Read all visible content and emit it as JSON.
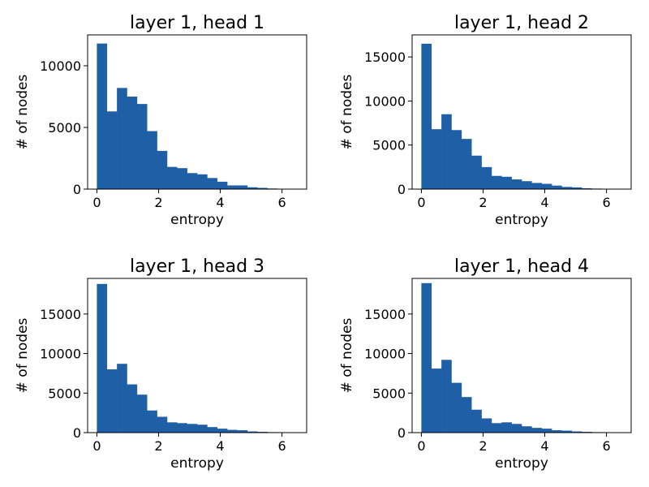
{
  "chart_data": [
    {
      "type": "bar",
      "title": "layer 1, head 1",
      "xlabel": "entropy",
      "ylabel": "# of nodes",
      "xlim": [
        -0.3,
        6.8
      ],
      "ylim": [
        0,
        12500
      ],
      "xticks": [
        0,
        2,
        4,
        6
      ],
      "yticks": [
        0,
        5000,
        10000
      ],
      "bin_start": 0,
      "bin_width": 0.325,
      "color": "#1f5fa6",
      "values": [
        11800,
        6300,
        8200,
        7500,
        6900,
        4700,
        3100,
        1800,
        1700,
        1300,
        1200,
        900,
        600,
        300,
        300,
        150,
        100,
        50,
        30,
        20
      ]
    },
    {
      "type": "bar",
      "title": "layer 1, head 2",
      "xlabel": "entropy",
      "ylabel": "# of nodes",
      "xlim": [
        -0.3,
        6.8
      ],
      "ylim": [
        0,
        17500
      ],
      "xticks": [
        0,
        2,
        4,
        6
      ],
      "yticks": [
        0,
        5000,
        10000,
        15000
      ],
      "bin_start": 0,
      "bin_width": 0.325,
      "color": "#1f5fa6",
      "values": [
        16500,
        6800,
        8500,
        6700,
        5700,
        3800,
        2500,
        1500,
        1400,
        1100,
        900,
        700,
        600,
        400,
        250,
        200,
        100,
        60,
        40,
        20
      ]
    },
    {
      "type": "bar",
      "title": "layer 1, head 3",
      "xlabel": "entropy",
      "ylabel": "# of nodes",
      "xlim": [
        -0.3,
        6.8
      ],
      "ylim": [
        0,
        19500
      ],
      "xticks": [
        0,
        2,
        4,
        6
      ],
      "yticks": [
        0,
        5000,
        10000,
        15000
      ],
      "bin_start": 0,
      "bin_width": 0.325,
      "color": "#1f5fa6",
      "values": [
        18800,
        8000,
        8700,
        6100,
        4800,
        2800,
        2000,
        1300,
        1200,
        1100,
        1000,
        700,
        500,
        350,
        300,
        150,
        100,
        60,
        40,
        20
      ]
    },
    {
      "type": "bar",
      "title": "layer 1, head 4",
      "xlabel": "entropy",
      "ylabel": "# of nodes",
      "xlim": [
        -0.3,
        6.8
      ],
      "ylim": [
        0,
        19500
      ],
      "xticks": [
        0,
        2,
        4,
        6
      ],
      "yticks": [
        0,
        5000,
        10000,
        15000
      ],
      "bin_start": 0,
      "bin_width": 0.325,
      "color": "#1f5fa6",
      "values": [
        18900,
        8100,
        9200,
        6300,
        4500,
        2900,
        1800,
        1200,
        1300,
        1100,
        800,
        600,
        500,
        300,
        250,
        150,
        100,
        60,
        40,
        20
      ]
    }
  ]
}
